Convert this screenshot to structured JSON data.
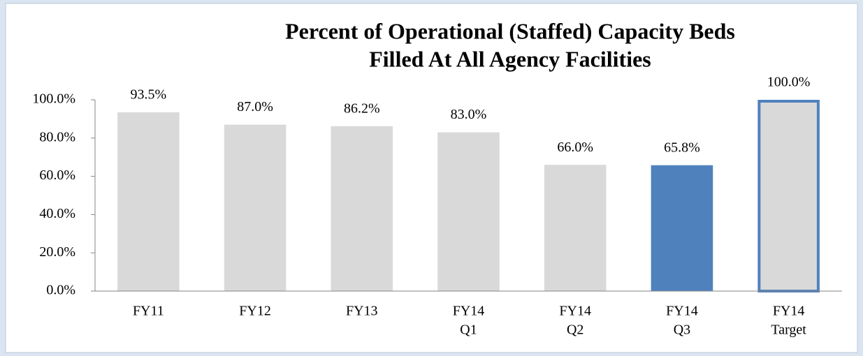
{
  "chart_data": {
    "type": "bar",
    "title": [
      "Percent of Operational (Staffed) Capacity Beds",
      "Filled At All Agency Facilities"
    ],
    "categories": [
      [
        "FY11"
      ],
      [
        "FY12"
      ],
      [
        "FY13"
      ],
      [
        "FY14",
        "Q1"
      ],
      [
        "FY14",
        "Q2"
      ],
      [
        "FY14",
        "Q3"
      ],
      [
        "FY14",
        "Target"
      ]
    ],
    "values": [
      93.5,
      87.0,
      86.2,
      83.0,
      66.0,
      65.8,
      100.0
    ],
    "value_labels": [
      "93.5%",
      "87.0%",
      "86.2%",
      "83.0%",
      "66.0%",
      "65.8%",
      "100.0%"
    ],
    "colors": [
      "#d9d9d9",
      "#d9d9d9",
      "#d9d9d9",
      "#d9d9d9",
      "#d9d9d9",
      "#4f81bd",
      "#d9d9d9"
    ],
    "edgecolors": [
      null,
      null,
      null,
      null,
      null,
      null,
      "#4f81bd"
    ],
    "ylim": [
      0,
      100
    ],
    "yticks": [
      {
        "value": 0,
        "label": "0.0%"
      },
      {
        "value": 20,
        "label": "20.0%"
      },
      {
        "value": 40,
        "label": "40.0%"
      },
      {
        "value": 60,
        "label": "60.0%"
      },
      {
        "value": 80,
        "label": "80.0%"
      },
      {
        "value": 100,
        "label": "100.0%"
      }
    ],
    "grid": false
  }
}
